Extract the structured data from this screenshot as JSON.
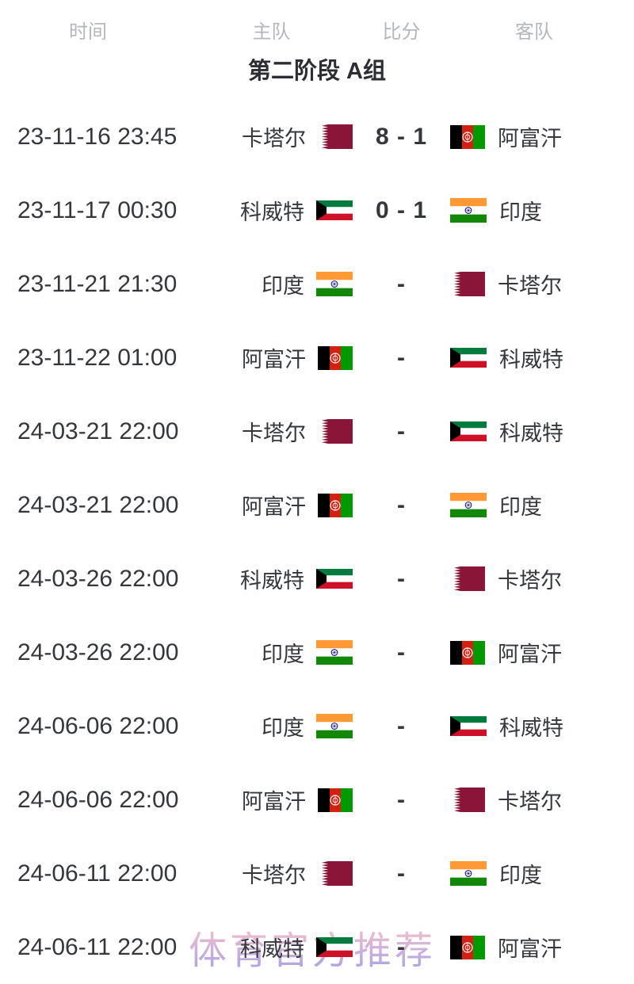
{
  "table_header": {
    "time": "时间",
    "home": "主队",
    "score": "比分",
    "away": "客队"
  },
  "section_title": "第二阶段 A组",
  "matches": [
    {
      "time": "23-11-16 23:45",
      "home": "卡塔尔",
      "home_flag": "qatar",
      "score": "8 - 1",
      "away": "阿富汗",
      "away_flag": "afghanistan"
    },
    {
      "time": "23-11-17 00:30",
      "home": "科威特",
      "home_flag": "kuwait",
      "score": "0 - 1",
      "away": "印度",
      "away_flag": "india"
    },
    {
      "time": "23-11-21 21:30",
      "home": "印度",
      "home_flag": "india",
      "score": "-",
      "away": "卡塔尔",
      "away_flag": "qatar"
    },
    {
      "time": "23-11-22 01:00",
      "home": "阿富汗",
      "home_flag": "afghanistan",
      "score": "-",
      "away": "科威特",
      "away_flag": "kuwait"
    },
    {
      "time": "24-03-21 22:00",
      "home": "卡塔尔",
      "home_flag": "qatar",
      "score": "-",
      "away": "科威特",
      "away_flag": "kuwait"
    },
    {
      "time": "24-03-21 22:00",
      "home": "阿富汗",
      "home_flag": "afghanistan",
      "score": "-",
      "away": "印度",
      "away_flag": "india"
    },
    {
      "time": "24-03-26 22:00",
      "home": "科威特",
      "home_flag": "kuwait",
      "score": "-",
      "away": "卡塔尔",
      "away_flag": "qatar"
    },
    {
      "time": "24-03-26 22:00",
      "home": "印度",
      "home_flag": "india",
      "score": "-",
      "away": "阿富汗",
      "away_flag": "afghanistan"
    },
    {
      "time": "24-06-06 22:00",
      "home": "印度",
      "home_flag": "india",
      "score": "-",
      "away": "科威特",
      "away_flag": "kuwait"
    },
    {
      "time": "24-06-06 22:00",
      "home": "阿富汗",
      "home_flag": "afghanistan",
      "score": "-",
      "away": "卡塔尔",
      "away_flag": "qatar"
    },
    {
      "time": "24-06-11 22:00",
      "home": "卡塔尔",
      "home_flag": "qatar",
      "score": "-",
      "away": "印度",
      "away_flag": "india"
    },
    {
      "time": "24-06-11 22:00",
      "home": "科威特",
      "home_flag": "kuwait",
      "score": "-",
      "away": "阿富汗",
      "away_flag": "afghanistan"
    }
  ],
  "watermark": {
    "text": "体育官方推荐",
    "color_top": "#f4b9c6",
    "color_bottom": "#a99ce2"
  },
  "colors": {
    "text_dark": "#34373c",
    "header_gray": "#b3b7bd",
    "title_dark": "#2c2e33",
    "qatar_maroon": "#8a1538",
    "afghan_black": "#000000",
    "afghan_red": "#d32011",
    "afghan_green": "#009a00",
    "kuwait_green": "#007a3d",
    "kuwait_red": "#ce1126",
    "kuwait_black": "#000000",
    "india_saffron": "#ff9933",
    "india_green": "#138808",
    "india_navy": "#000080"
  }
}
